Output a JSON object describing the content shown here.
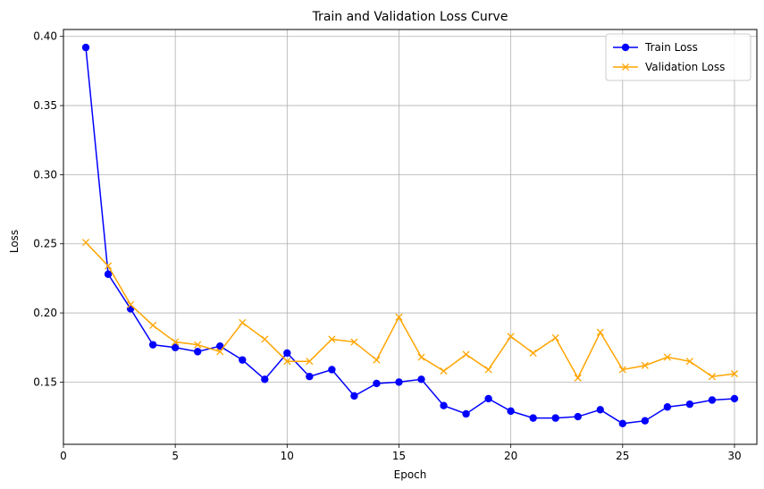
{
  "chart_data": {
    "type": "line",
    "title": "Train and Validation Loss Curve",
    "xlabel": "Epoch",
    "ylabel": "Loss",
    "xlim": [
      0,
      31
    ],
    "ylim": [
      0.105,
      0.405
    ],
    "xticks": [
      0,
      5,
      10,
      15,
      20,
      25,
      30
    ],
    "yticks": [
      0.15,
      0.2,
      0.25,
      0.3,
      0.35,
      0.4
    ],
    "grid": true,
    "legend_position": "top-right",
    "x": [
      1,
      2,
      3,
      4,
      5,
      6,
      7,
      8,
      9,
      10,
      11,
      12,
      13,
      14,
      15,
      16,
      17,
      18,
      19,
      20,
      21,
      22,
      23,
      24,
      25,
      26,
      27,
      28,
      29,
      30
    ],
    "series": [
      {
        "name": "Train Loss",
        "color": "#0000ff",
        "marker": "circle",
        "values": [
          0.392,
          0.228,
          0.203,
          0.177,
          0.175,
          0.172,
          0.176,
          0.166,
          0.152,
          0.171,
          0.154,
          0.159,
          0.14,
          0.149,
          0.15,
          0.152,
          0.133,
          0.127,
          0.138,
          0.129,
          0.124,
          0.124,
          0.125,
          0.13,
          0.12,
          0.122,
          0.132,
          0.134,
          0.137,
          0.138
        ]
      },
      {
        "name": "Validation Loss",
        "color": "#ffa500",
        "marker": "x",
        "values": [
          0.251,
          0.234,
          0.206,
          0.191,
          0.179,
          0.177,
          0.172,
          0.193,
          0.181,
          0.165,
          0.165,
          0.181,
          0.179,
          0.166,
          0.197,
          0.168,
          0.158,
          0.17,
          0.159,
          0.183,
          0.171,
          0.182,
          0.153,
          0.186,
          0.159,
          0.162,
          0.168,
          0.165,
          0.154,
          0.156
        ]
      }
    ]
  }
}
